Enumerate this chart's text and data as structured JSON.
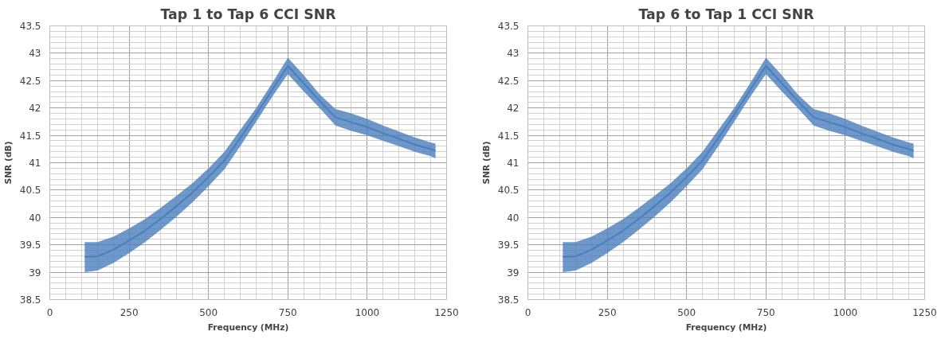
{
  "chart_data": [
    {
      "type": "line",
      "title": "Tap 1 to Tap 6 CCI SNR",
      "xlabel": "Frequency (MHz)",
      "ylabel": "SNR (dB)",
      "xlim": [
        0,
        1250
      ],
      "xticks": [
        0,
        250,
        500,
        750,
        1000,
        1250
      ],
      "ylim": [
        38.5,
        43.5
      ],
      "yticks": [
        38.5,
        39,
        39.5,
        40,
        40.5,
        41,
        41.5,
        42,
        42.5,
        43,
        43.5
      ],
      "grid": true,
      "marker": "none",
      "series": [
        {
          "color": "#4a7ebb",
          "x": [
            110,
            150,
            200,
            250,
            300,
            350,
            400,
            450,
            500,
            550,
            600,
            650,
            700,
            750,
            800,
            850,
            900,
            950,
            1000,
            1050,
            1100,
            1150,
            1200,
            1215
          ],
          "values": [
            39.28,
            39.29,
            39.41,
            39.58,
            39.76,
            39.98,
            40.21,
            40.46,
            40.74,
            41.04,
            41.45,
            41.88,
            42.33,
            42.77,
            42.45,
            42.13,
            41.83,
            41.74,
            41.65,
            41.54,
            41.44,
            41.33,
            41.25,
            41.22
          ],
          "upper": [
            39.55,
            39.55,
            39.65,
            39.8,
            39.97,
            40.18,
            40.4,
            40.63,
            40.9,
            41.2,
            41.6,
            42.0,
            42.45,
            42.92,
            42.6,
            42.25,
            41.98,
            41.9,
            41.8,
            41.68,
            41.57,
            41.46,
            41.37,
            41.35
          ],
          "lower": [
            39.0,
            39.03,
            39.17,
            39.35,
            39.55,
            39.78,
            40.02,
            40.28,
            40.57,
            40.88,
            41.3,
            41.75,
            42.2,
            42.62,
            42.3,
            42.0,
            41.68,
            41.58,
            41.5,
            41.4,
            41.3,
            41.2,
            41.12,
            41.08
          ]
        }
      ]
    },
    {
      "type": "line",
      "title": "Tap 6 to Tap 1 CCI SNR",
      "xlabel": "Frequency (MHz)",
      "ylabel": "SNR (dB)",
      "xlim": [
        0,
        1250
      ],
      "xticks": [
        0,
        250,
        500,
        750,
        1000,
        1250
      ],
      "ylim": [
        38.5,
        43.5
      ],
      "yticks": [
        38.5,
        39,
        39.5,
        40,
        40.5,
        41,
        41.5,
        42,
        42.5,
        43,
        43.5
      ],
      "grid": true,
      "marker": "none",
      "series": [
        {
          "color": "#4a7ebb",
          "x": [
            110,
            150,
            200,
            250,
            300,
            350,
            400,
            450,
            500,
            550,
            600,
            650,
            700,
            750,
            800,
            850,
            900,
            950,
            1000,
            1050,
            1100,
            1150,
            1200,
            1215
          ],
          "values": [
            39.28,
            39.29,
            39.41,
            39.58,
            39.76,
            39.98,
            40.21,
            40.46,
            40.74,
            41.04,
            41.45,
            41.88,
            42.33,
            42.77,
            42.45,
            42.13,
            41.83,
            41.74,
            41.65,
            41.54,
            41.44,
            41.33,
            41.25,
            41.22
          ],
          "upper": [
            39.55,
            39.55,
            39.65,
            39.8,
            39.97,
            40.18,
            40.4,
            40.63,
            40.9,
            41.2,
            41.6,
            42.0,
            42.45,
            42.92,
            42.6,
            42.25,
            41.98,
            41.9,
            41.8,
            41.68,
            41.57,
            41.46,
            41.37,
            41.35
          ],
          "lower": [
            39.0,
            39.03,
            39.17,
            39.35,
            39.55,
            39.78,
            40.02,
            40.28,
            40.57,
            40.88,
            41.3,
            41.75,
            42.2,
            42.62,
            42.3,
            42.0,
            41.68,
            41.58,
            41.5,
            41.4,
            41.3,
            41.2,
            41.12,
            41.08
          ]
        }
      ]
    }
  ]
}
